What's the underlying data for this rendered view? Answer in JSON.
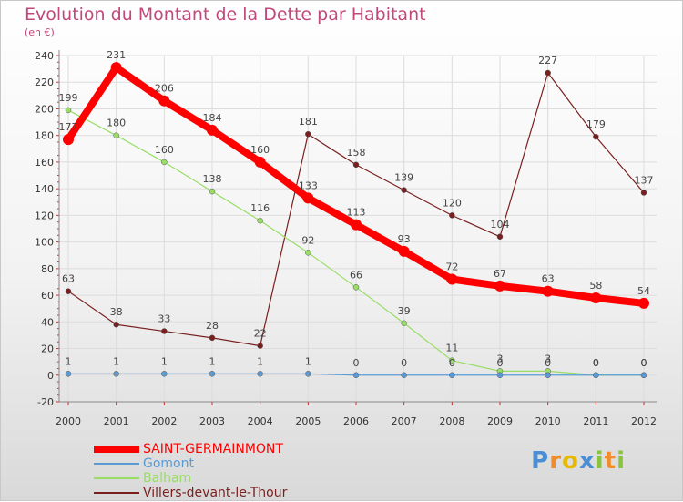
{
  "chart_data": {
    "type": "line",
    "title": "Evolution du Montant de la Dette par Habitant",
    "subtitle": "(en €)",
    "xlabel": "",
    "ylabel": "",
    "categories": [
      "2000",
      "2001",
      "2002",
      "2003",
      "2004",
      "2005",
      "2006",
      "2007",
      "2008",
      "2009",
      "2010",
      "2011",
      "2012"
    ],
    "ylim": [
      -20,
      240
    ],
    "yticks": [
      -20,
      0,
      20,
      40,
      60,
      80,
      100,
      120,
      140,
      160,
      180,
      200,
      220,
      240
    ],
    "grid": true,
    "legend_position": "bottom-left",
    "series": [
      {
        "name": "Villers-devant-le-Thour",
        "color": "#7a1f1f",
        "values": [
          63,
          38,
          33,
          28,
          22,
          181,
          158,
          139,
          120,
          104,
          227,
          179,
          137
        ]
      },
      {
        "name": "Balham",
        "color": "#99dd66",
        "values": [
          199,
          180,
          160,
          138,
          116,
          92,
          66,
          39,
          11,
          3,
          3,
          0,
          0
        ]
      },
      {
        "name": "Gomont",
        "color": "#5b9bd5",
        "values": [
          1,
          1,
          1,
          1,
          1,
          1,
          0,
          0,
          0,
          0,
          0,
          0,
          0
        ]
      },
      {
        "name": "SAINT-GERMAINMONT",
        "color": "#ff0000",
        "values": [
          177,
          231,
          206,
          184,
          160,
          133,
          113,
          93,
          72,
          67,
          63,
          58,
          54
        ]
      }
    ]
  },
  "legend": {
    "items": [
      {
        "label": "SAINT-GERMAINMONT",
        "color": "#ff0000"
      },
      {
        "label": "Gomont",
        "color": "#5b9bd5"
      },
      {
        "label": "Balham",
        "color": "#99dd66"
      },
      {
        "label": "Villers-devant-le-Thour",
        "color": "#7a1f1f"
      }
    ]
  },
  "logo": {
    "letters": [
      {
        "char": "P",
        "color": "#4a8fd6"
      },
      {
        "char": "r",
        "color": "#f28c28"
      },
      {
        "char": "o",
        "color": "#e6b800"
      },
      {
        "char": "x",
        "color": "#4a8fd6"
      },
      {
        "char": "i",
        "color": "#8ac43f"
      },
      {
        "char": "t",
        "color": "#f28c28"
      },
      {
        "char": "i",
        "color": "#8ac43f"
      }
    ]
  }
}
